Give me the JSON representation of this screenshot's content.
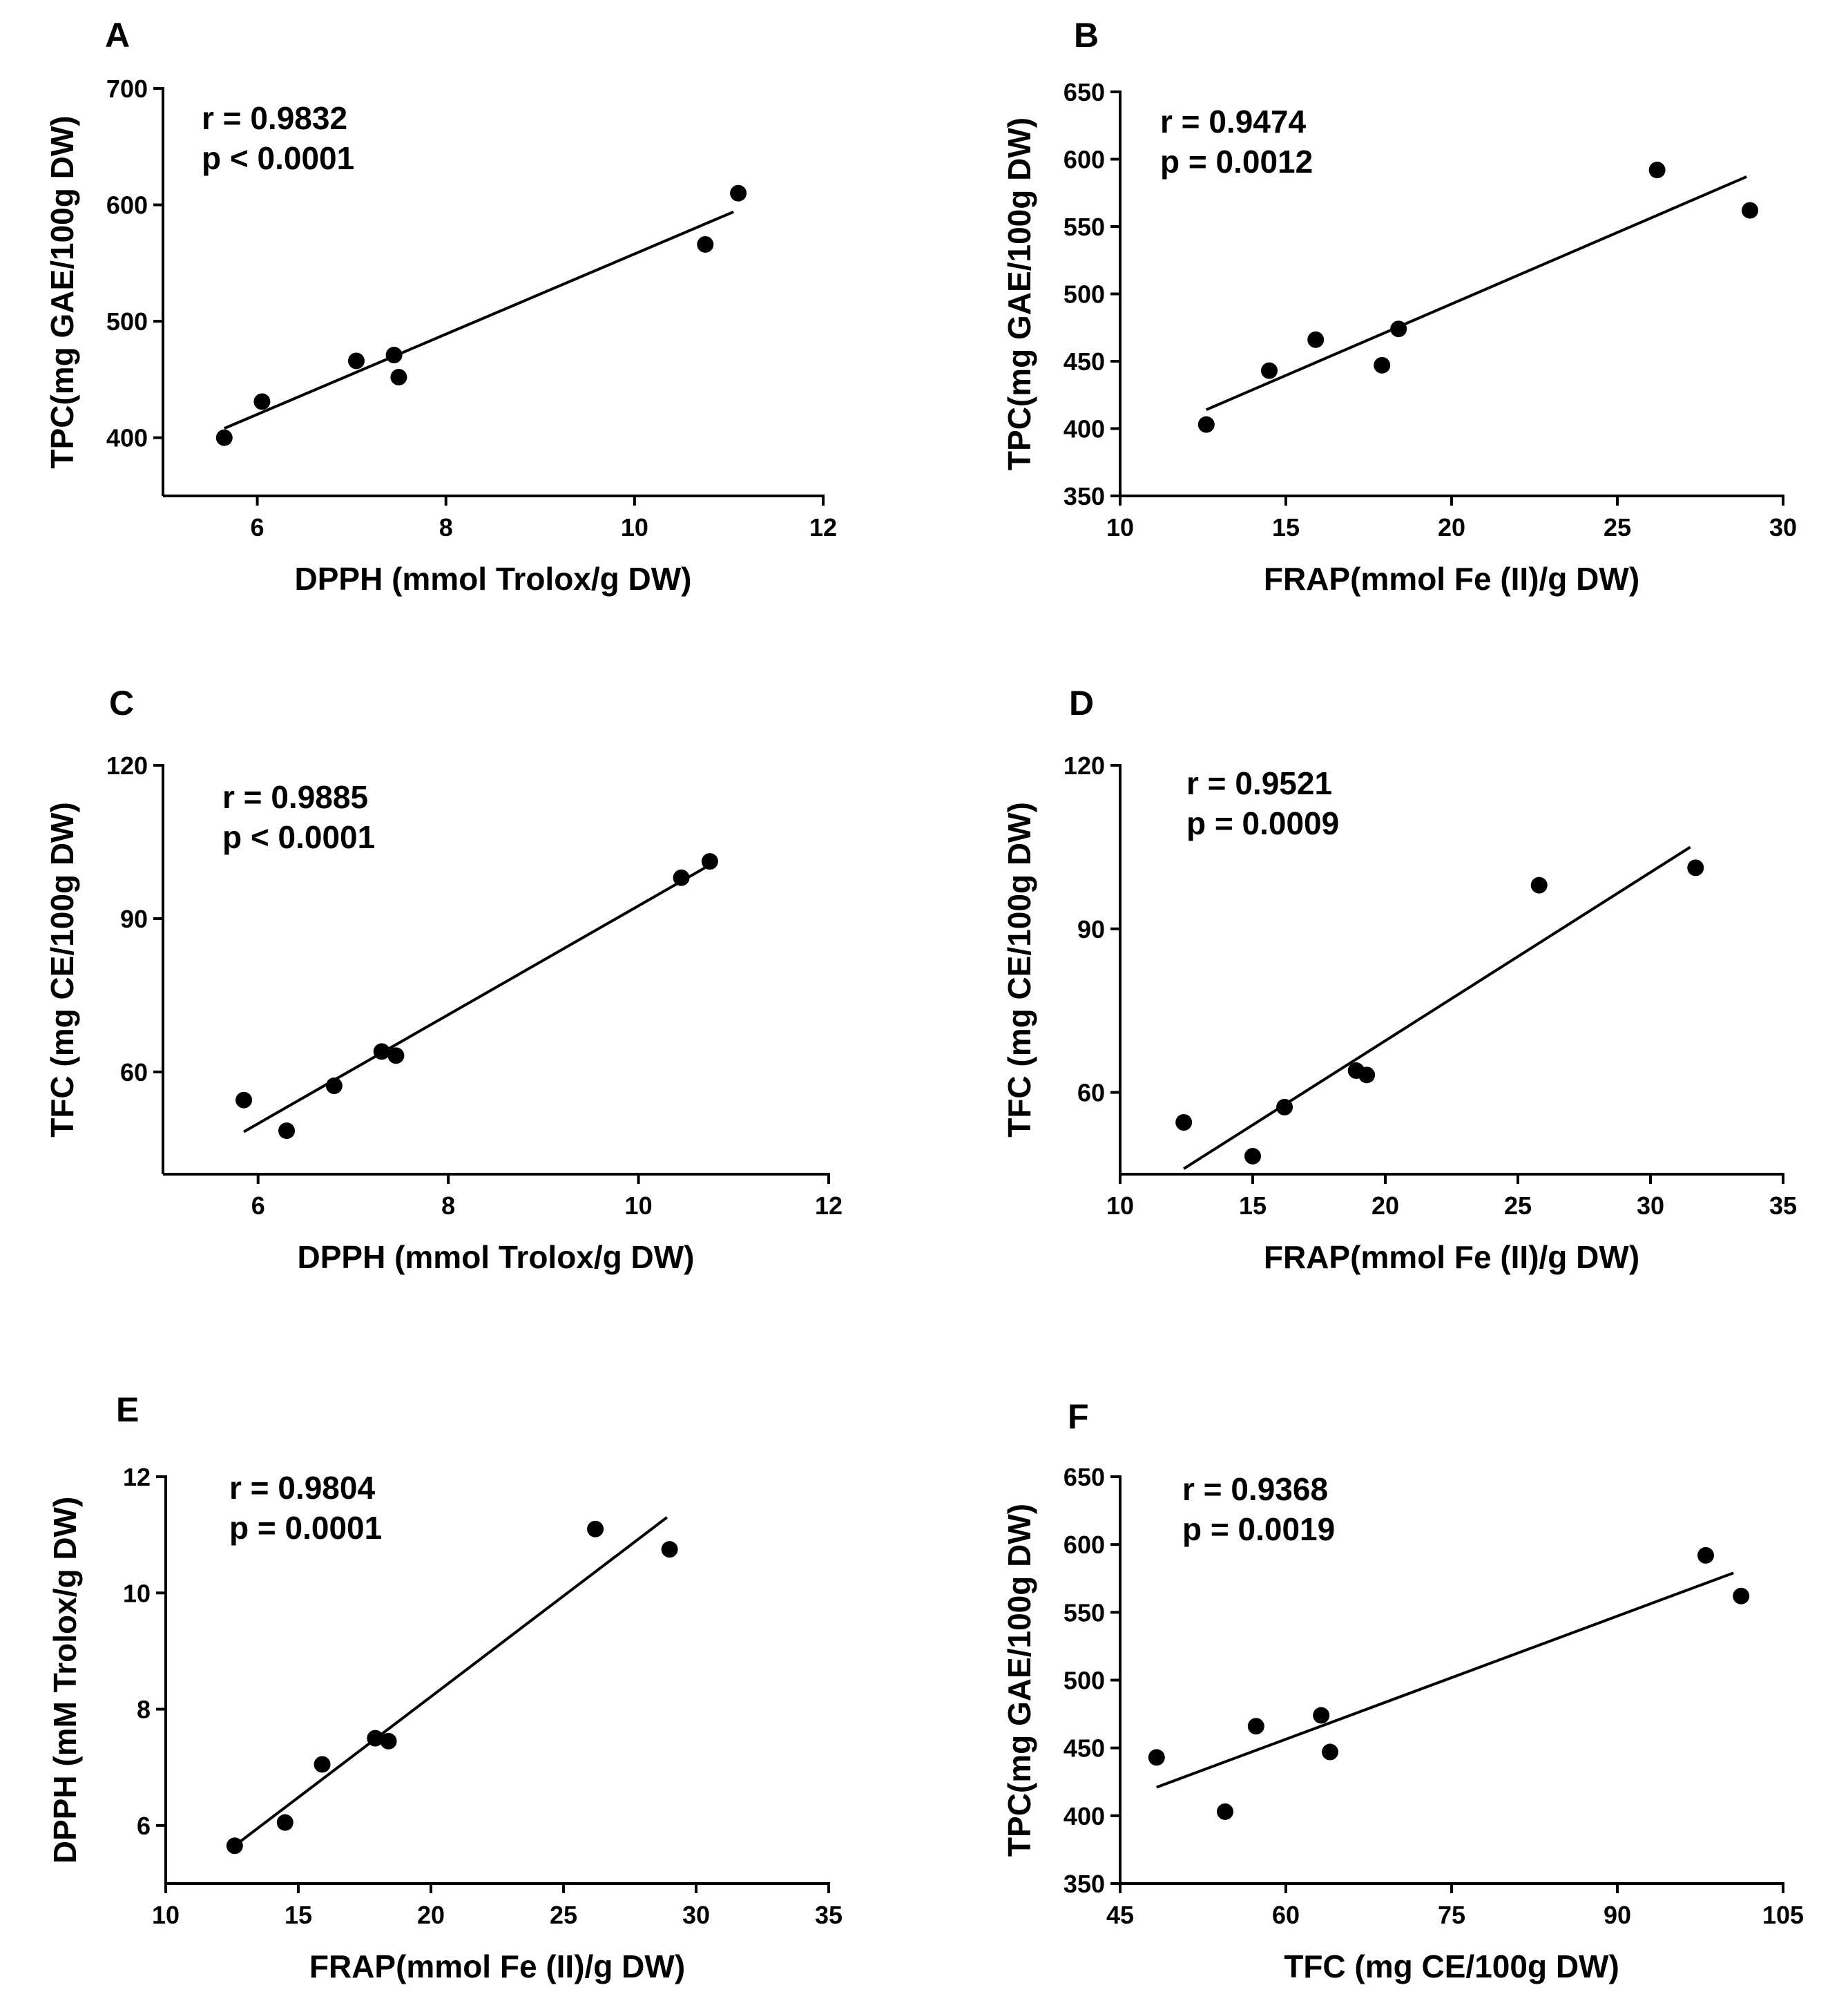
{
  "figure": {
    "panels": [
      {
        "label": "A",
        "stats": [
          "r = 0.9832",
          "p < 0.0001"
        ],
        "chart_data": {
          "type": "scatter",
          "xlabel": "DPPH (mmol Trolox/g DW)",
          "ylabel": "TPC(mg GAE/100g DW)",
          "xlim": [
            5,
            12
          ],
          "ylim": [
            350,
            700
          ],
          "xticks": [
            6,
            8,
            10,
            12
          ],
          "yticks": [
            400,
            500,
            600,
            700
          ],
          "points": [
            [
              5.65,
              400
            ],
            [
              6.05,
              431
            ],
            [
              7.05,
              466
            ],
            [
              7.45,
              471
            ],
            [
              7.5,
              452
            ],
            [
              10.75,
              566
            ],
            [
              11.1,
              610
            ]
          ],
          "fit": [
            [
              5.65,
              408
            ],
            [
              11.05,
              594
            ]
          ]
        }
      },
      {
        "label": "B",
        "stats": [
          "r = 0.9474",
          "p = 0.0012"
        ],
        "chart_data": {
          "type": "scatter",
          "xlabel": "FRAP(mmol Fe (II)/g DW)",
          "ylabel": "TPC(mg GAE/100g DW)",
          "xlim": [
            10,
            30
          ],
          "ylim": [
            350,
            650
          ],
          "xticks": [
            10,
            15,
            20,
            25,
            30
          ],
          "yticks": [
            350,
            400,
            450,
            500,
            550,
            600,
            650
          ],
          "points": [
            [
              12.6,
              403
            ],
            [
              14.5,
              443
            ],
            [
              15.9,
              466
            ],
            [
              17.9,
              447
            ],
            [
              18.4,
              474
            ],
            [
              26.2,
              592
            ],
            [
              29.0,
              562
            ]
          ],
          "fit": [
            [
              12.6,
              414
            ],
            [
              28.9,
              587
            ]
          ]
        }
      },
      {
        "label": "C",
        "stats": [
          "r = 0.9885",
          "p < 0.0001"
        ],
        "chart_data": {
          "type": "scatter",
          "xlabel": "DPPH (mmol Trolox/g DW)",
          "ylabel": "TFC (mg CE/100g DW)",
          "xlim": [
            5,
            12
          ],
          "ylim": [
            40,
            120
          ],
          "xticks": [
            6,
            8,
            10,
            12
          ],
          "yticks": [
            60,
            90,
            120
          ],
          "points": [
            [
              5.85,
              54.5
            ],
            [
              6.3,
              48.5
            ],
            [
              6.8,
              57.3
            ],
            [
              7.3,
              64.0
            ],
            [
              7.45,
              63.2
            ],
            [
              10.45,
              98.0
            ],
            [
              10.75,
              101.2
            ]
          ],
          "fit": [
            [
              5.85,
              48.3
            ],
            [
              10.75,
              100.5
            ]
          ]
        }
      },
      {
        "label": "D",
        "stats": [
          "r = 0.9521",
          "p = 0.0009"
        ],
        "chart_data": {
          "type": "scatter",
          "xlabel": "FRAP(mmol Fe (II)/g DW)",
          "ylabel": "TFC (mg CE/100g DW)",
          "xlim": [
            10,
            35
          ],
          "ylim": [
            45,
            120
          ],
          "xticks": [
            10,
            15,
            20,
            25,
            30,
            35
          ],
          "yticks": [
            60,
            90,
            120
          ],
          "points": [
            [
              12.4,
              54.5
            ],
            [
              15.0,
              48.3
            ],
            [
              16.2,
              57.3
            ],
            [
              18.9,
              64.0
            ],
            [
              19.3,
              63.2
            ],
            [
              25.8,
              98.0
            ],
            [
              31.7,
              101.2
            ]
          ],
          "fit": [
            [
              12.4,
              46.0
            ],
            [
              31.5,
              105.0
            ]
          ]
        }
      },
      {
        "label": "E",
        "stats": [
          "r = 0.9804",
          "p = 0.0001"
        ],
        "chart_data": {
          "type": "scatter",
          "xlabel": "FRAP(mmol Fe (II)/g DW)",
          "ylabel": "DPPH (mM Trolox/g DW)",
          "xlim": [
            10,
            35
          ],
          "ylim": [
            5,
            12
          ],
          "xticks": [
            10,
            15,
            20,
            25,
            30,
            35
          ],
          "yticks": [
            6,
            8,
            10,
            12
          ],
          "points": [
            [
              12.6,
              5.65
            ],
            [
              14.5,
              6.05
            ],
            [
              15.9,
              7.05
            ],
            [
              17.9,
              7.5
            ],
            [
              18.4,
              7.45
            ],
            [
              26.2,
              11.1
            ],
            [
              29.0,
              10.75
            ]
          ],
          "fit": [
            [
              12.6,
              5.65
            ],
            [
              28.9,
              11.3
            ]
          ]
        }
      },
      {
        "label": "F",
        "stats": [
          "r = 0.9368",
          "p = 0.0019"
        ],
        "chart_data": {
          "type": "scatter",
          "xlabel": "TFC (mg CE/100g DW)",
          "ylabel": "TPC(mg GAE/100g DW)",
          "xlim": [
            45,
            105
          ],
          "ylim": [
            350,
            650
          ],
          "xticks": [
            45,
            60,
            75,
            90,
            105
          ],
          "yticks": [
            350,
            400,
            450,
            500,
            550,
            600,
            650
          ],
          "points": [
            [
              48.3,
              443
            ],
            [
              54.5,
              403
            ],
            [
              57.3,
              466
            ],
            [
              63.2,
              474
            ],
            [
              64.0,
              447
            ],
            [
              98.0,
              592
            ],
            [
              101.2,
              562
            ]
          ],
          "fit": [
            [
              48.3,
              421
            ],
            [
              100.5,
              579
            ]
          ]
        }
      }
    ]
  }
}
